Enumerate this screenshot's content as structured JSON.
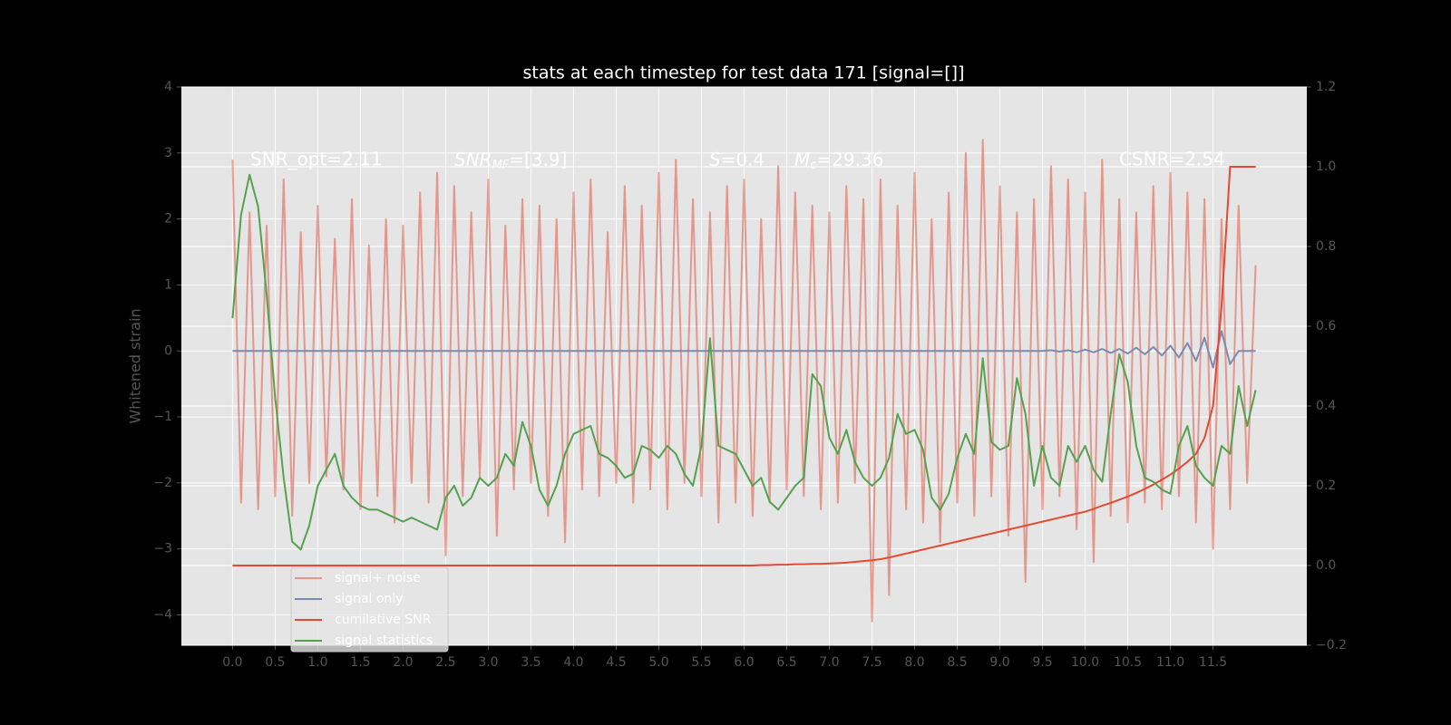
{
  "chart_data": {
    "type": "line",
    "title": "stats at each timestep for test data 171 [signal=[]]",
    "ylabel": "Whitened strain",
    "annotations": [
      "SNR_opt=2.11",
      {
        "symbol": "SNR",
        "sub": "MF",
        "text": "=[3.9]"
      },
      {
        "symbol": "S",
        "text": "=0.4"
      },
      {
        "symbol": "M",
        "sub": "c",
        "text": "=29.36"
      },
      "CSNR=2.54"
    ],
    "grid": true,
    "legend": "lower left",
    "xlim": [
      -0.6,
      12.6
    ],
    "ylim": [
      -4.46,
      4
    ],
    "y2lim": [
      -0.2,
      1.2
    ],
    "xticks": [
      {
        "value": 0,
        "label": "0.0"
      },
      0.5,
      {
        "value": 1,
        "label": "1.0"
      },
      1.5,
      {
        "value": 2,
        "label": "2.0"
      },
      2.5,
      {
        "value": 3,
        "label": "3.0"
      },
      3.5,
      {
        "value": 4,
        "label": "4.0"
      },
      4.5,
      {
        "value": 5,
        "label": "5.0"
      },
      5.5,
      {
        "value": 6,
        "label": "6.0"
      },
      6.5,
      {
        "value": 7,
        "label": "7.0"
      },
      7.5,
      {
        "value": 8,
        "label": "8.0"
      },
      8.5,
      {
        "value": 9,
        "label": "9.0"
      },
      9.5,
      {
        "value": 10,
        "label": "10.0"
      },
      10.5,
      {
        "value": 11,
        "label": "11.0"
      },
      11.5
    ],
    "yticks": [
      {
        "value": -4,
        "label": "−4"
      },
      {
        "value": -3,
        "label": "−3"
      },
      {
        "value": -2,
        "label": "−2"
      },
      {
        "value": -1,
        "label": "−1"
      },
      0,
      1,
      2,
      3,
      4
    ],
    "y2ticks": [
      {
        "value": -0.2,
        "label": "−0.2"
      },
      {
        "value": 0,
        "label": "0.0"
      },
      0.2,
      0.4,
      0.6,
      0.8,
      {
        "value": 1,
        "label": "1.0"
      },
      1.2
    ],
    "x": [
      0,
      0.1,
      0.2,
      0.3,
      0.4,
      0.5,
      0.6,
      0.7,
      0.8,
      0.9,
      1,
      1.1,
      1.2,
      1.3,
      1.4,
      1.5,
      1.6,
      1.7,
      1.8,
      1.9,
      2,
      2.1,
      2.2,
      2.3,
      2.4,
      2.5,
      2.6,
      2.7,
      2.8,
      2.9,
      3,
      3.1,
      3.2,
      3.3,
      3.4,
      3.5,
      3.6,
      3.7,
      3.8,
      3.9,
      4,
      4.1,
      4.2,
      4.3,
      4.4,
      4.5,
      4.6,
      4.7,
      4.8,
      4.9,
      5,
      5.1,
      5.2,
      5.3,
      5.4,
      5.5,
      5.6,
      5.7,
      5.8,
      5.9,
      6,
      6.1,
      6.2,
      6.3,
      6.4,
      6.5,
      6.6,
      6.7,
      6.8,
      6.9,
      7,
      7.1,
      7.2,
      7.3,
      7.4,
      7.5,
      7.6,
      7.7,
      7.8,
      7.9,
      8,
      8.1,
      8.2,
      8.3,
      8.4,
      8.5,
      8.6,
      8.7,
      8.8,
      8.9,
      9,
      9.1,
      9.2,
      9.3,
      9.4,
      9.5,
      9.6,
      9.7,
      9.8,
      9.9,
      10,
      10.1,
      10.2,
      10.3,
      10.4,
      10.5,
      10.6,
      10.7,
      10.8,
      10.9,
      11,
      11.1,
      11.2,
      11.3,
      11.4,
      11.5,
      11.6,
      11.7,
      11.8,
      11.9,
      12
    ],
    "series": [
      {
        "name": "signal+ noise",
        "color": "#E24A33",
        "opacity": 0.5,
        "values": [
          2.9,
          -2.3,
          2.1,
          -2.4,
          1.9,
          -2.2,
          2.6,
          -2.5,
          1.8,
          -2.0,
          2.2,
          -1.9,
          1.7,
          -2.1,
          2.3,
          -2.4,
          1.6,
          -2.2,
          2.0,
          -2.6,
          1.9,
          -2.0,
          2.4,
          -2.3,
          2.7,
          -3.1,
          2.5,
          -2.2,
          2.1,
          -1.9,
          2.6,
          -2.8,
          1.9,
          -2.1,
          2.3,
          -2.0,
          2.2,
          -2.5,
          2.0,
          -2.9,
          2.4,
          -2.1,
          2.6,
          -2.2,
          1.8,
          -2.0,
          2.5,
          -2.3,
          2.2,
          -2.1,
          2.7,
          -2.4,
          2.9,
          -2.0,
          2.3,
          -2.2,
          2.1,
          -2.6,
          2.5,
          -2.3,
          2.6,
          -2.5,
          2.0,
          -2.3,
          2.8,
          -2.1,
          2.4,
          -2.2,
          2.2,
          -2.4,
          2.1,
          -2.3,
          2.5,
          -2.0,
          2.3,
          -4.1,
          2.6,
          -3.7,
          2.2,
          -2.4,
          2.7,
          -2.6,
          2.0,
          -2.9,
          2.4,
          -2.3,
          3.0,
          -2.5,
          3.2,
          -2.2,
          2.5,
          -2.8,
          2.1,
          -3.5,
          2.3,
          -2.4,
          2.8,
          -2.2,
          2.6,
          -2.7,
          2.4,
          -3.2,
          2.9,
          -2.5,
          2.3,
          -2.6,
          2.1,
          -2.3,
          2.5,
          -2.4,
          2.7,
          -2.2,
          2.4,
          -2.6,
          2.3,
          -3.0,
          2.0,
          -2.4,
          2.2,
          -2.0,
          1.3
        ]
      },
      {
        "name": "signal only",
        "color": "#7A8BB0",
        "opacity": 1,
        "values": [
          0,
          0,
          0,
          0,
          0,
          0,
          0,
          0,
          0,
          0,
          0,
          0,
          0,
          0,
          0,
          0,
          0,
          0,
          0,
          0,
          0,
          0,
          0,
          0,
          0,
          0,
          0,
          0,
          0,
          0,
          0,
          0,
          0,
          0,
          0,
          0,
          0,
          0,
          0,
          0,
          0,
          0,
          0,
          0,
          0,
          0,
          0,
          0,
          0,
          0,
          0,
          0,
          0,
          0,
          0,
          0,
          0,
          0,
          0,
          0,
          0,
          0,
          0,
          0,
          0,
          0,
          0,
          0,
          0,
          0,
          0,
          0,
          0,
          0,
          0,
          0,
          0,
          0,
          0,
          0,
          0,
          0,
          0,
          0,
          0,
          0,
          0,
          0,
          0,
          0,
          0,
          0,
          0,
          0,
          0,
          0,
          0.01,
          -0.01,
          0.01,
          -0.02,
          0.02,
          -0.02,
          0.03,
          -0.03,
          0.03,
          -0.04,
          0.05,
          -0.05,
          0.06,
          -0.07,
          0.08,
          -0.1,
          0.12,
          -0.15,
          0.2,
          -0.25,
          0.3,
          -0.2,
          0,
          0,
          0
        ]
      },
      {
        "name": "cumilative SNR",
        "color": "#E24A33",
        "opacity": 1,
        "axis": "y2",
        "values": [
          0,
          0,
          0,
          0,
          0,
          0,
          0,
          0,
          0,
          0,
          0,
          0,
          0,
          0,
          0,
          0,
          0,
          0,
          0,
          0,
          0,
          0,
          0,
          0,
          0,
          0,
          0,
          0,
          0,
          0,
          0,
          0,
          0,
          0,
          0,
          0,
          0,
          0,
          0,
          0,
          0,
          0,
          0,
          0,
          0,
          0,
          0,
          0,
          0,
          0,
          0,
          0,
          0,
          0,
          0,
          0,
          0,
          0,
          0,
          0,
          0,
          0,
          0.001,
          0.001,
          0.002,
          0.002,
          0.003,
          0.003,
          0.004,
          0.004,
          0.005,
          0.006,
          0.007,
          0.009,
          0.011,
          0.013,
          0.016,
          0.02,
          0.025,
          0.03,
          0.035,
          0.04,
          0.045,
          0.05,
          0.055,
          0.06,
          0.065,
          0.07,
          0.075,
          0.08,
          0.085,
          0.09,
          0.095,
          0.1,
          0.105,
          0.11,
          0.115,
          0.12,
          0.125,
          0.13,
          0.135,
          0.142,
          0.15,
          0.157,
          0.165,
          0.173,
          0.182,
          0.192,
          0.203,
          0.215,
          0.228,
          0.243,
          0.26,
          0.28,
          0.32,
          0.4,
          0.65,
          1.0,
          1.0,
          1.0,
          1.0
        ]
      },
      {
        "name": "signal statistics",
        "color": "#55A14F",
        "opacity": 1,
        "axis": "y2",
        "values": [
          0.62,
          0.88,
          0.98,
          0.9,
          0.68,
          0.42,
          0.22,
          0.06,
          0.04,
          0.1,
          0.2,
          0.24,
          0.28,
          0.2,
          0.17,
          0.15,
          0.14,
          0.14,
          0.13,
          0.12,
          0.11,
          0.12,
          0.11,
          0.1,
          0.09,
          0.17,
          0.2,
          0.15,
          0.17,
          0.22,
          0.2,
          0.22,
          0.28,
          0.25,
          0.36,
          0.3,
          0.19,
          0.15,
          0.2,
          0.28,
          0.33,
          0.34,
          0.35,
          0.28,
          0.27,
          0.25,
          0.22,
          0.23,
          0.3,
          0.29,
          0.27,
          0.3,
          0.28,
          0.23,
          0.2,
          0.3,
          0.57,
          0.3,
          0.29,
          0.28,
          0.24,
          0.2,
          0.22,
          0.16,
          0.14,
          0.17,
          0.2,
          0.22,
          0.48,
          0.45,
          0.32,
          0.28,
          0.34,
          0.26,
          0.22,
          0.2,
          0.22,
          0.27,
          0.38,
          0.33,
          0.34,
          0.29,
          0.17,
          0.14,
          0.18,
          0.27,
          0.33,
          0.28,
          0.52,
          0.31,
          0.29,
          0.3,
          0.47,
          0.38,
          0.2,
          0.3,
          0.22,
          0.2,
          0.3,
          0.26,
          0.3,
          0.24,
          0.21,
          0.38,
          0.53,
          0.46,
          0.3,
          0.22,
          0.21,
          0.19,
          0.18,
          0.3,
          0.35,
          0.25,
          0.22,
          0.2,
          0.3,
          0.28,
          0.45,
          0.35,
          0.44
        ]
      }
    ]
  }
}
